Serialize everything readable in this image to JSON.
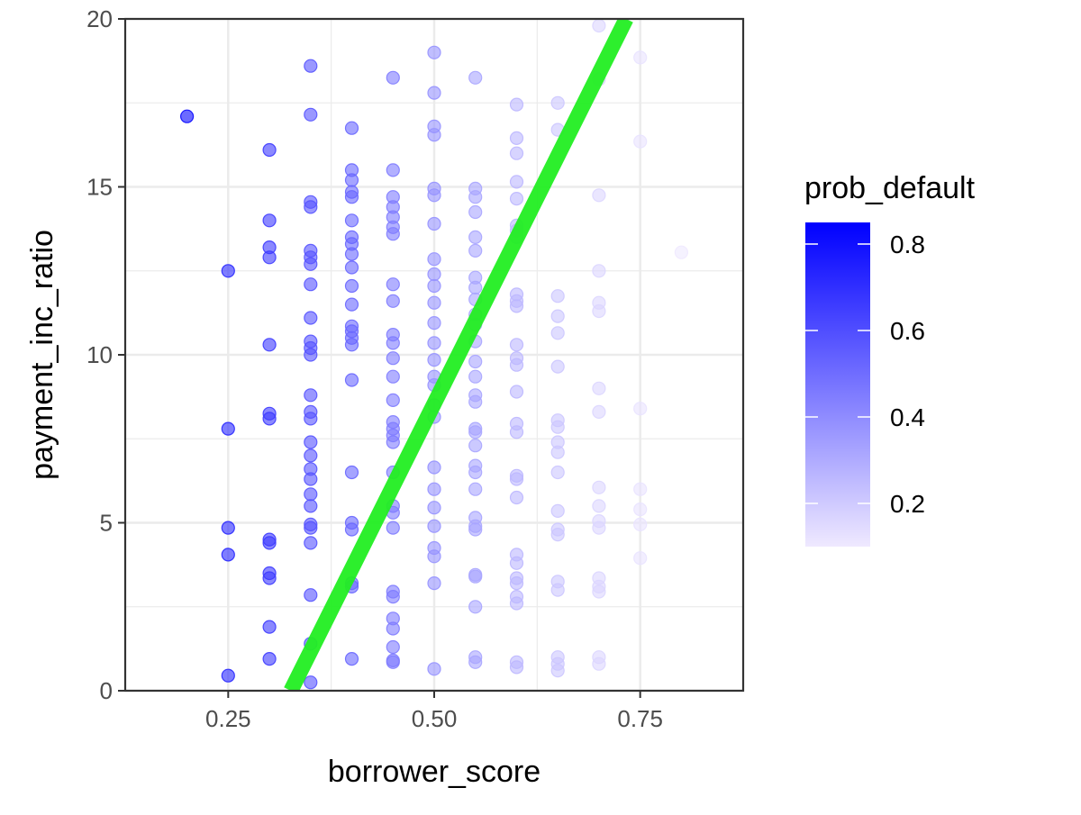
{
  "chart_data": {
    "type": "scatter",
    "xlabel": "borrower_score",
    "ylabel": "payment_inc_ratio",
    "xlim": [
      0.125,
      0.875
    ],
    "ylim": [
      0,
      20
    ],
    "x_ticks": [
      0.25,
      0.5,
      0.75
    ],
    "x_tick_labels": [
      "0.25",
      "0.50",
      "0.75"
    ],
    "y_ticks": [
      0,
      5,
      10,
      15,
      20
    ],
    "y_tick_labels": [
      "0",
      "5",
      "10",
      "15",
      "20"
    ],
    "grid": true,
    "theme": "bw",
    "legend": {
      "title": "prob_default",
      "placement": "right",
      "type": "colorbar",
      "range": [
        0.1,
        0.85
      ],
      "ticks": [
        0.2,
        0.4,
        0.6,
        0.8
      ],
      "tick_labels": [
        "0.2",
        "0.4",
        "0.6",
        "0.8"
      ],
      "low_color": "#efe9ff",
      "high_color": "#0000ff"
    },
    "point_opacity": 0.6,
    "fit_line": {
      "color": "#22ee22",
      "points": [
        [
          0.326,
          0
        ],
        [
          0.733,
          20
        ]
      ]
    },
    "points": [
      [
        0.2,
        17.1,
        0.82
      ],
      [
        0.25,
        12.5,
        0.72
      ],
      [
        0.25,
        7.8,
        0.72
      ],
      [
        0.25,
        4.85,
        0.72
      ],
      [
        0.25,
        4.05,
        0.72
      ],
      [
        0.25,
        0.45,
        0.72
      ],
      [
        0.3,
        16.1,
        0.66
      ],
      [
        0.3,
        14.0,
        0.66
      ],
      [
        0.3,
        13.2,
        0.66
      ],
      [
        0.3,
        12.9,
        0.66
      ],
      [
        0.3,
        10.3,
        0.66
      ],
      [
        0.3,
        8.25,
        0.66
      ],
      [
        0.3,
        8.1,
        0.66
      ],
      [
        0.3,
        4.5,
        0.66
      ],
      [
        0.3,
        4.4,
        0.66
      ],
      [
        0.3,
        3.5,
        0.66
      ],
      [
        0.3,
        3.35,
        0.66
      ],
      [
        0.3,
        1.9,
        0.66
      ],
      [
        0.3,
        0.95,
        0.66
      ],
      [
        0.35,
        18.6,
        0.58
      ],
      [
        0.35,
        17.15,
        0.58
      ],
      [
        0.35,
        14.55,
        0.58
      ],
      [
        0.35,
        14.4,
        0.58
      ],
      [
        0.35,
        13.1,
        0.58
      ],
      [
        0.35,
        12.9,
        0.58
      ],
      [
        0.35,
        12.7,
        0.58
      ],
      [
        0.35,
        12.1,
        0.58
      ],
      [
        0.35,
        11.1,
        0.58
      ],
      [
        0.35,
        10.4,
        0.58
      ],
      [
        0.35,
        10.2,
        0.58
      ],
      [
        0.35,
        10.0,
        0.58
      ],
      [
        0.35,
        8.8,
        0.58
      ],
      [
        0.35,
        8.3,
        0.58
      ],
      [
        0.35,
        8.1,
        0.58
      ],
      [
        0.35,
        7.4,
        0.58
      ],
      [
        0.35,
        7.0,
        0.58
      ],
      [
        0.35,
        6.6,
        0.58
      ],
      [
        0.35,
        6.3,
        0.58
      ],
      [
        0.35,
        5.85,
        0.58
      ],
      [
        0.35,
        5.5,
        0.58
      ],
      [
        0.35,
        4.95,
        0.58
      ],
      [
        0.35,
        4.85,
        0.58
      ],
      [
        0.35,
        4.4,
        0.58
      ],
      [
        0.35,
        2.85,
        0.58
      ],
      [
        0.35,
        1.4,
        0.58
      ],
      [
        0.35,
        0.25,
        0.58
      ],
      [
        0.4,
        16.75,
        0.52
      ],
      [
        0.4,
        15.5,
        0.52
      ],
      [
        0.4,
        15.2,
        0.52
      ],
      [
        0.4,
        14.85,
        0.52
      ],
      [
        0.4,
        14.7,
        0.52
      ],
      [
        0.4,
        14.0,
        0.52
      ],
      [
        0.4,
        13.5,
        0.52
      ],
      [
        0.4,
        13.3,
        0.52
      ],
      [
        0.4,
        13.0,
        0.52
      ],
      [
        0.4,
        12.6,
        0.52
      ],
      [
        0.4,
        12.05,
        0.52
      ],
      [
        0.4,
        11.5,
        0.52
      ],
      [
        0.4,
        10.85,
        0.52
      ],
      [
        0.4,
        10.7,
        0.52
      ],
      [
        0.4,
        10.5,
        0.52
      ],
      [
        0.4,
        10.3,
        0.52
      ],
      [
        0.4,
        9.25,
        0.52
      ],
      [
        0.4,
        6.5,
        0.52
      ],
      [
        0.4,
        5.0,
        0.52
      ],
      [
        0.4,
        4.8,
        0.52
      ],
      [
        0.4,
        3.2,
        0.52
      ],
      [
        0.4,
        3.1,
        0.52
      ],
      [
        0.4,
        0.95,
        0.52
      ],
      [
        0.45,
        18.25,
        0.45
      ],
      [
        0.45,
        15.5,
        0.45
      ],
      [
        0.45,
        14.7,
        0.45
      ],
      [
        0.45,
        14.4,
        0.45
      ],
      [
        0.45,
        14.1,
        0.45
      ],
      [
        0.45,
        13.8,
        0.45
      ],
      [
        0.45,
        13.6,
        0.45
      ],
      [
        0.45,
        12.1,
        0.45
      ],
      [
        0.45,
        11.6,
        0.45
      ],
      [
        0.45,
        10.6,
        0.45
      ],
      [
        0.45,
        10.35,
        0.45
      ],
      [
        0.45,
        9.9,
        0.45
      ],
      [
        0.45,
        9.35,
        0.45
      ],
      [
        0.45,
        8.65,
        0.45
      ],
      [
        0.45,
        8.0,
        0.45
      ],
      [
        0.45,
        7.8,
        0.45
      ],
      [
        0.45,
        7.6,
        0.45
      ],
      [
        0.45,
        7.4,
        0.45
      ],
      [
        0.45,
        6.5,
        0.45
      ],
      [
        0.45,
        5.5,
        0.45
      ],
      [
        0.45,
        5.3,
        0.45
      ],
      [
        0.45,
        4.85,
        0.45
      ],
      [
        0.45,
        2.95,
        0.45
      ],
      [
        0.45,
        2.8,
        0.45
      ],
      [
        0.45,
        2.15,
        0.45
      ],
      [
        0.45,
        1.85,
        0.45
      ],
      [
        0.45,
        1.3,
        0.45
      ],
      [
        0.45,
        0.9,
        0.45
      ],
      [
        0.45,
        0.85,
        0.45
      ],
      [
        0.5,
        19.0,
        0.38
      ],
      [
        0.5,
        17.8,
        0.38
      ],
      [
        0.5,
        16.8,
        0.38
      ],
      [
        0.5,
        16.55,
        0.38
      ],
      [
        0.5,
        14.95,
        0.38
      ],
      [
        0.5,
        14.75,
        0.38
      ],
      [
        0.5,
        13.9,
        0.38
      ],
      [
        0.5,
        12.85,
        0.38
      ],
      [
        0.5,
        12.4,
        0.38
      ],
      [
        0.5,
        12.05,
        0.38
      ],
      [
        0.5,
        11.55,
        0.38
      ],
      [
        0.5,
        10.95,
        0.38
      ],
      [
        0.5,
        10.35,
        0.38
      ],
      [
        0.5,
        9.85,
        0.38
      ],
      [
        0.5,
        9.35,
        0.38
      ],
      [
        0.5,
        9.1,
        0.38
      ],
      [
        0.5,
        8.5,
        0.38
      ],
      [
        0.5,
        8.15,
        0.38
      ],
      [
        0.5,
        6.65,
        0.38
      ],
      [
        0.5,
        6.0,
        0.38
      ],
      [
        0.5,
        5.45,
        0.38
      ],
      [
        0.5,
        4.9,
        0.38
      ],
      [
        0.5,
        4.25,
        0.38
      ],
      [
        0.5,
        4.0,
        0.38
      ],
      [
        0.5,
        3.2,
        0.38
      ],
      [
        0.5,
        0.65,
        0.38
      ],
      [
        0.55,
        18.25,
        0.32
      ],
      [
        0.55,
        14.95,
        0.32
      ],
      [
        0.55,
        14.7,
        0.32
      ],
      [
        0.55,
        14.25,
        0.32
      ],
      [
        0.55,
        13.5,
        0.32
      ],
      [
        0.55,
        13.1,
        0.32
      ],
      [
        0.55,
        12.3,
        0.32
      ],
      [
        0.55,
        12.0,
        0.32
      ],
      [
        0.55,
        11.65,
        0.32
      ],
      [
        0.55,
        11.2,
        0.32
      ],
      [
        0.55,
        10.9,
        0.32
      ],
      [
        0.55,
        10.4,
        0.32
      ],
      [
        0.55,
        9.8,
        0.32
      ],
      [
        0.55,
        9.35,
        0.32
      ],
      [
        0.55,
        8.8,
        0.32
      ],
      [
        0.55,
        8.6,
        0.32
      ],
      [
        0.55,
        7.8,
        0.32
      ],
      [
        0.55,
        7.7,
        0.32
      ],
      [
        0.55,
        7.3,
        0.32
      ],
      [
        0.55,
        6.7,
        0.32
      ],
      [
        0.55,
        6.5,
        0.32
      ],
      [
        0.55,
        6.0,
        0.32
      ],
      [
        0.55,
        5.15,
        0.32
      ],
      [
        0.55,
        4.9,
        0.32
      ],
      [
        0.55,
        4.8,
        0.32
      ],
      [
        0.55,
        3.45,
        0.32
      ],
      [
        0.55,
        3.4,
        0.32
      ],
      [
        0.55,
        2.5,
        0.32
      ],
      [
        0.55,
        1.0,
        0.32
      ],
      [
        0.55,
        0.85,
        0.32
      ],
      [
        0.6,
        17.45,
        0.26
      ],
      [
        0.6,
        16.45,
        0.26
      ],
      [
        0.6,
        16.0,
        0.26
      ],
      [
        0.6,
        15.15,
        0.26
      ],
      [
        0.6,
        14.65,
        0.26
      ],
      [
        0.6,
        13.85,
        0.26
      ],
      [
        0.6,
        13.7,
        0.26
      ],
      [
        0.6,
        13.5,
        0.26
      ],
      [
        0.6,
        11.8,
        0.26
      ],
      [
        0.6,
        11.6,
        0.26
      ],
      [
        0.6,
        11.45,
        0.26
      ],
      [
        0.6,
        10.3,
        0.26
      ],
      [
        0.6,
        9.9,
        0.26
      ],
      [
        0.6,
        9.7,
        0.26
      ],
      [
        0.6,
        8.9,
        0.26
      ],
      [
        0.6,
        7.95,
        0.26
      ],
      [
        0.6,
        7.7,
        0.26
      ],
      [
        0.6,
        6.4,
        0.26
      ],
      [
        0.6,
        6.3,
        0.26
      ],
      [
        0.6,
        5.75,
        0.26
      ],
      [
        0.6,
        4.05,
        0.26
      ],
      [
        0.6,
        3.8,
        0.26
      ],
      [
        0.6,
        3.35,
        0.26
      ],
      [
        0.6,
        3.2,
        0.26
      ],
      [
        0.6,
        2.8,
        0.26
      ],
      [
        0.6,
        2.6,
        0.26
      ],
      [
        0.6,
        0.85,
        0.26
      ],
      [
        0.6,
        0.7,
        0.26
      ],
      [
        0.65,
        17.5,
        0.21
      ],
      [
        0.65,
        16.7,
        0.21
      ],
      [
        0.65,
        11.75,
        0.21
      ],
      [
        0.65,
        11.15,
        0.21
      ],
      [
        0.65,
        10.65,
        0.21
      ],
      [
        0.65,
        9.65,
        0.21
      ],
      [
        0.65,
        8.05,
        0.21
      ],
      [
        0.65,
        7.85,
        0.21
      ],
      [
        0.65,
        7.4,
        0.21
      ],
      [
        0.65,
        7.1,
        0.21
      ],
      [
        0.65,
        6.5,
        0.21
      ],
      [
        0.65,
        5.35,
        0.21
      ],
      [
        0.65,
        4.8,
        0.21
      ],
      [
        0.65,
        4.65,
        0.21
      ],
      [
        0.65,
        3.25,
        0.21
      ],
      [
        0.65,
        3.0,
        0.21
      ],
      [
        0.65,
        1.0,
        0.21
      ],
      [
        0.65,
        0.8,
        0.21
      ],
      [
        0.65,
        0.6,
        0.21
      ],
      [
        0.7,
        19.8,
        0.16
      ],
      [
        0.7,
        18.2,
        0.16
      ],
      [
        0.7,
        14.75,
        0.16
      ],
      [
        0.7,
        12.5,
        0.16
      ],
      [
        0.7,
        11.55,
        0.16
      ],
      [
        0.7,
        11.3,
        0.16
      ],
      [
        0.7,
        9.0,
        0.16
      ],
      [
        0.7,
        8.3,
        0.16
      ],
      [
        0.7,
        6.05,
        0.16
      ],
      [
        0.7,
        5.5,
        0.16
      ],
      [
        0.7,
        5.05,
        0.16
      ],
      [
        0.7,
        4.85,
        0.16
      ],
      [
        0.7,
        3.35,
        0.16
      ],
      [
        0.7,
        3.1,
        0.16
      ],
      [
        0.7,
        2.95,
        0.16
      ],
      [
        0.7,
        1.0,
        0.16
      ],
      [
        0.7,
        0.8,
        0.16
      ],
      [
        0.75,
        18.85,
        0.12
      ],
      [
        0.75,
        16.35,
        0.12
      ],
      [
        0.75,
        8.4,
        0.12
      ],
      [
        0.75,
        6.0,
        0.12
      ],
      [
        0.75,
        5.4,
        0.12
      ],
      [
        0.75,
        4.95,
        0.12
      ],
      [
        0.75,
        3.95,
        0.12
      ],
      [
        0.8,
        13.05,
        0.1
      ]
    ]
  }
}
